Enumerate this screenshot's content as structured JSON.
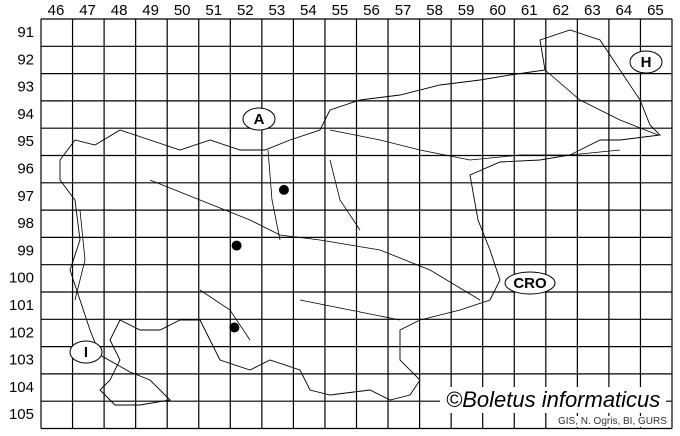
{
  "grid": {
    "columns": [
      "46",
      "47",
      "48",
      "49",
      "50",
      "51",
      "52",
      "53",
      "54",
      "55",
      "56",
      "57",
      "58",
      "59",
      "60",
      "61",
      "62",
      "63",
      "64",
      "65"
    ],
    "rows": [
      "91",
      "92",
      "93",
      "94",
      "95",
      "96",
      "97",
      "98",
      "99",
      "100",
      "101",
      "102",
      "103",
      "104",
      "105"
    ]
  },
  "country_labels": [
    {
      "code": "A",
      "name": "A"
    },
    {
      "code": "H",
      "name": "H"
    },
    {
      "code": "CRO",
      "name": "CRO"
    },
    {
      "code": "I",
      "name": "I"
    }
  ],
  "records": [
    {
      "column": "53",
      "row": "97"
    },
    {
      "column": "52",
      "row": "99"
    },
    {
      "column": "52",
      "row": "102"
    }
  ],
  "credit": "©Boletus informaticus",
  "source": "GIS, N. Ogris, BI, GURS",
  "colors": {
    "lines": "#000000",
    "background": "#ffffff",
    "dots": "#000000"
  }
}
